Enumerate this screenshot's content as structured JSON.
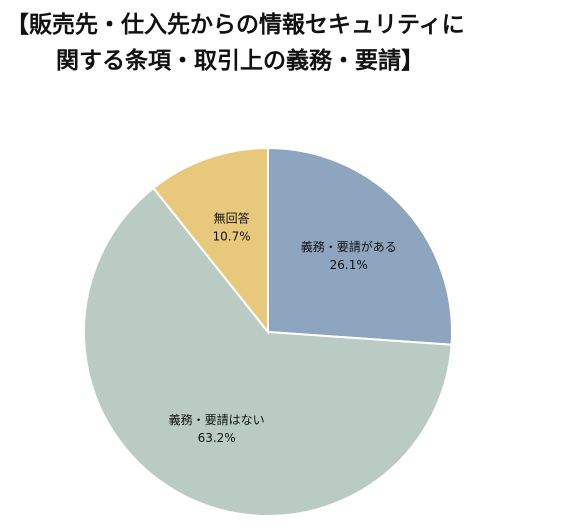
{
  "chart_data": {
    "type": "pie",
    "title": [
      "【販売先・仕入先からの情報セキュリティに",
      "関する条項・取引上の義務・要請】"
    ],
    "categories": [
      "義務・要請がある",
      "義務・要請はない",
      "無回答"
    ],
    "values": [
      26.1,
      63.2,
      10.7
    ],
    "value_labels": [
      "26.1%",
      "63.2%",
      "10.7%"
    ],
    "colors": [
      "#8ea5bf",
      "#b9cbc3",
      "#e8c97b"
    ]
  }
}
